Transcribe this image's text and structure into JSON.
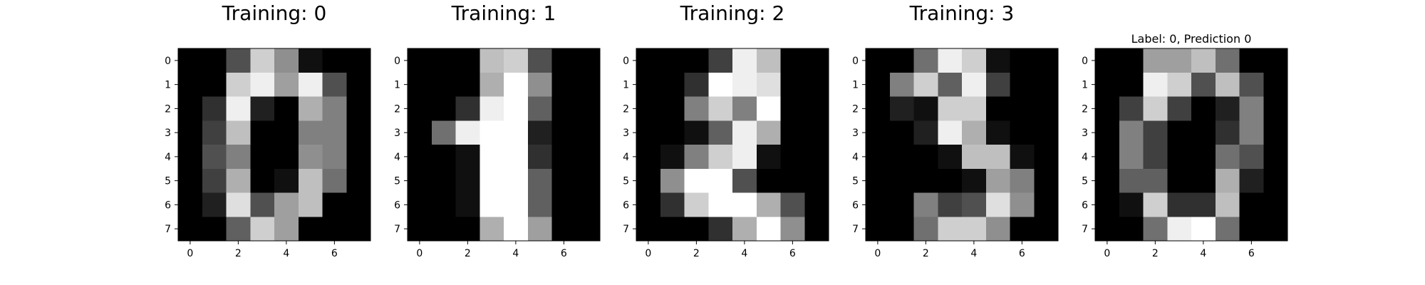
{
  "chart_data": [
    {
      "type": "heatmap",
      "title": "Training: 0",
      "colormap": "gray_r",
      "value_range": [
        0,
        16
      ],
      "x_ticks": [
        "0",
        "2",
        "4",
        "6"
      ],
      "y_ticks": [
        "0",
        "1",
        "2",
        "3",
        "4",
        "5",
        "6",
        "7"
      ],
      "values": [
        [
          0,
          0,
          5,
          13,
          9,
          1,
          0,
          0
        ],
        [
          0,
          0,
          13,
          15,
          10,
          15,
          5,
          0
        ],
        [
          0,
          3,
          15,
          2,
          0,
          11,
          8,
          0
        ],
        [
          0,
          4,
          12,
          0,
          0,
          8,
          8,
          0
        ],
        [
          0,
          5,
          8,
          0,
          0,
          9,
          8,
          0
        ],
        [
          0,
          4,
          11,
          0,
          1,
          12,
          7,
          0
        ],
        [
          0,
          2,
          14,
          5,
          10,
          12,
          0,
          0
        ],
        [
          0,
          0,
          6,
          13,
          10,
          0,
          0,
          0
        ]
      ]
    },
    {
      "type": "heatmap",
      "title": "Training: 1",
      "colormap": "gray_r",
      "value_range": [
        0,
        16
      ],
      "x_ticks": [
        "0",
        "2",
        "4",
        "6"
      ],
      "y_ticks": [
        "0",
        "1",
        "2",
        "3",
        "4",
        "5",
        "6",
        "7"
      ],
      "values": [
        [
          0,
          0,
          0,
          12,
          13,
          5,
          0,
          0
        ],
        [
          0,
          0,
          0,
          11,
          16,
          9,
          0,
          0
        ],
        [
          0,
          0,
          3,
          15,
          16,
          6,
          0,
          0
        ],
        [
          0,
          7,
          15,
          16,
          16,
          2,
          0,
          0
        ],
        [
          0,
          0,
          1,
          16,
          16,
          3,
          0,
          0
        ],
        [
          0,
          0,
          1,
          16,
          16,
          6,
          0,
          0
        ],
        [
          0,
          0,
          1,
          16,
          16,
          6,
          0,
          0
        ],
        [
          0,
          0,
          0,
          11,
          16,
          10,
          0,
          0
        ]
      ]
    },
    {
      "type": "heatmap",
      "title": "Training: 2",
      "colormap": "gray_r",
      "value_range": [
        0,
        16
      ],
      "x_ticks": [
        "0",
        "2",
        "4",
        "6"
      ],
      "y_ticks": [
        "0",
        "1",
        "2",
        "3",
        "4",
        "5",
        "6",
        "7"
      ],
      "values": [
        [
          0,
          0,
          0,
          4,
          15,
          12,
          0,
          0
        ],
        [
          0,
          0,
          3,
          16,
          15,
          14,
          0,
          0
        ],
        [
          0,
          0,
          8,
          13,
          8,
          16,
          0,
          0
        ],
        [
          0,
          0,
          1,
          6,
          15,
          11,
          0,
          0
        ],
        [
          0,
          1,
          8,
          13,
          15,
          1,
          0,
          0
        ],
        [
          0,
          9,
          16,
          16,
          5,
          0,
          0,
          0
        ],
        [
          0,
          3,
          13,
          16,
          16,
          11,
          5,
          0
        ],
        [
          0,
          0,
          0,
          3,
          11,
          16,
          9,
          0
        ]
      ]
    },
    {
      "type": "heatmap",
      "title": "Training: 3",
      "colormap": "gray_r",
      "value_range": [
        0,
        16
      ],
      "x_ticks": [
        "0",
        "2",
        "4",
        "6"
      ],
      "y_ticks": [
        "0",
        "1",
        "2",
        "3",
        "4",
        "5",
        "6",
        "7"
      ],
      "values": [
        [
          0,
          0,
          7,
          15,
          13,
          1,
          0,
          0
        ],
        [
          0,
          8,
          13,
          6,
          15,
          4,
          0,
          0
        ],
        [
          0,
          2,
          1,
          13,
          13,
          0,
          0,
          0
        ],
        [
          0,
          0,
          2,
          15,
          11,
          1,
          0,
          0
        ],
        [
          0,
          0,
          0,
          1,
          12,
          12,
          1,
          0
        ],
        [
          0,
          0,
          0,
          0,
          1,
          10,
          8,
          0
        ],
        [
          0,
          0,
          8,
          4,
          5,
          14,
          9,
          0
        ],
        [
          0,
          0,
          7,
          13,
          13,
          9,
          0,
          0
        ]
      ]
    },
    {
      "type": "heatmap",
      "title": "Label: 0, Prediction 0",
      "colormap": "gray_r",
      "value_range": [
        0,
        16
      ],
      "x_ticks": [
        "0",
        "2",
        "4",
        "6"
      ],
      "y_ticks": [
        "0",
        "1",
        "2",
        "3",
        "4",
        "5",
        "6",
        "7"
      ],
      "values": [
        [
          0,
          0,
          10,
          10,
          12,
          7,
          0,
          0
        ],
        [
          0,
          0,
          15,
          13,
          5,
          12,
          5,
          0
        ],
        [
          0,
          4,
          13,
          4,
          0,
          2,
          8,
          0
        ],
        [
          0,
          8,
          4,
          0,
          0,
          3,
          8,
          0
        ],
        [
          0,
          8,
          4,
          0,
          0,
          7,
          5,
          0
        ],
        [
          0,
          6,
          6,
          0,
          0,
          11,
          2,
          0
        ],
        [
          0,
          1,
          13,
          3,
          3,
          12,
          0,
          0
        ],
        [
          0,
          0,
          7,
          15,
          16,
          7,
          0,
          0
        ]
      ]
    }
  ]
}
